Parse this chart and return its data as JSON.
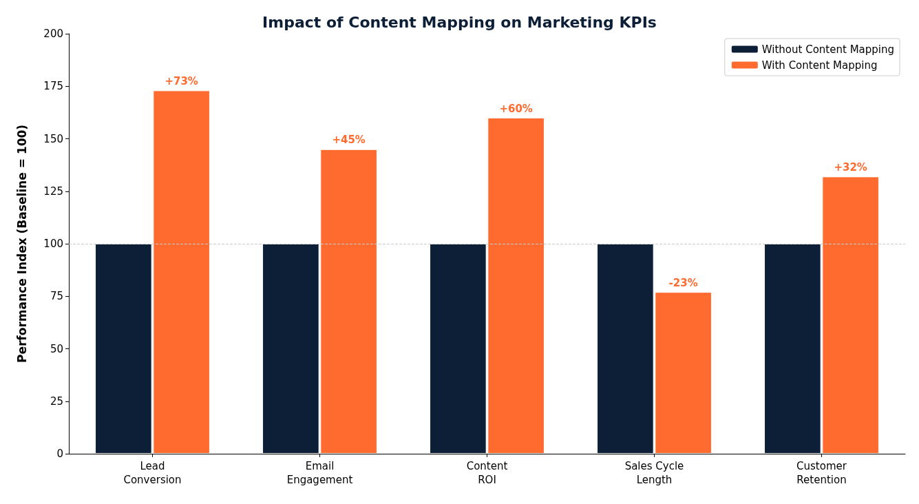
{
  "chart_data": {
    "type": "bar",
    "title": "Impact of Content Mapping on Marketing KPIs",
    "ylabel": "Performance Index (Baseline = 100)",
    "categories": [
      "Lead\nConversion",
      "Email\nEngagement",
      "Content\nROI",
      "Sales Cycle\nLength",
      "Customer\nRetention"
    ],
    "series": [
      {
        "name": "Without Content Mapping",
        "color": "#0d1f36",
        "values": [
          100,
          100,
          100,
          100,
          100
        ]
      },
      {
        "name": "With Content Mapping",
        "color": "#ff6b2f",
        "values": [
          173,
          145,
          160,
          77,
          132
        ]
      }
    ],
    "annotations": [
      {
        "text": "+73%",
        "x": "Lead\nConversion",
        "y": 173
      },
      {
        "text": "+45%",
        "x": "Email\nEngagement",
        "y": 145
      },
      {
        "text": "+60%",
        "x": "Content\nROI",
        "y": 160
      },
      {
        "text": "-23%",
        "x": "Sales Cycle\nLength",
        "y": 77
      },
      {
        "text": "+32%",
        "x": "Customer\nRetention",
        "y": 132
      }
    ],
    "ylim": [
      0,
      200
    ],
    "yticks": [
      0,
      25,
      50,
      75,
      100,
      125,
      150,
      175,
      200
    ],
    "grid": false,
    "legend": "top right",
    "ref_lines": [
      {
        "axis": "y",
        "value": 100,
        "color": "#cccccc",
        "line_style": "dashed"
      }
    ]
  }
}
